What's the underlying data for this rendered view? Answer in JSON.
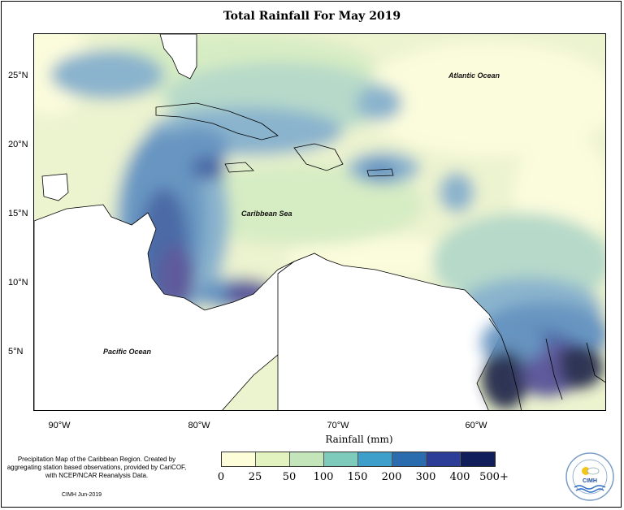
{
  "title": "Total Rainfall For May 2019",
  "latitude_labels": [
    "25°N",
    "20°N",
    "15°N",
    "10°N",
    "5°N"
  ],
  "longitude_labels": [
    "90°W",
    "80°W",
    "70°W",
    "60°W"
  ],
  "place_labels": {
    "atlantic": "Atlantic Ocean",
    "caribbean": "Caribbean Sea",
    "pacific": "Pacific Ocean"
  },
  "legend": {
    "title": "Rainfall (mm)",
    "ticks": [
      "0",
      "25",
      "50",
      "100",
      "150",
      "200",
      "300",
      "400",
      "500+"
    ],
    "colors": [
      "#fdfdd9",
      "#e3f3c0",
      "#c3e5b9",
      "#7fcbbb",
      "#3e9fca",
      "#2a6cae",
      "#2b3d96",
      "#101f5c"
    ]
  },
  "map_colors": {
    "land": "#ffffff",
    "base": "#ecf3cf",
    "pale": "#fbfcdc",
    "light_green": "#d6ecc3",
    "green_blue": "#b6d9c9",
    "mid_blue": "#8ab3cd",
    "blue": "#6895c1",
    "deep_blue": "#4b6aa6",
    "indigo": "#5e5a9b",
    "navy": "#2d3555"
  },
  "footnote": "Precipitation Map of the Caribbean Region. Created by aggregating station based observations, provided by CariCOF, with NCEP/NCAR Reanalysis Data.",
  "credit": "CIMH Jun-2019",
  "logo": {
    "text": "CIMH",
    "ring_text": "CARIBBEAN INSTITUTE FOR METEOROLOGY AND HYDROLOGY"
  }
}
